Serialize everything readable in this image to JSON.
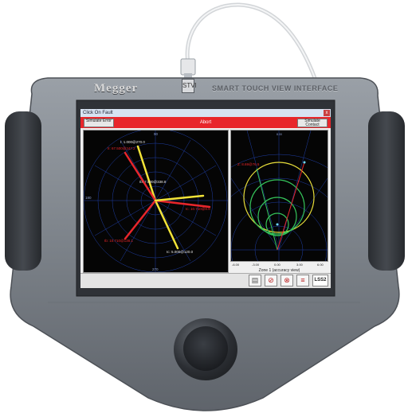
{
  "device": {
    "brand": "Megger",
    "tagline": "SMART TOUCH VIEW INTERFACE",
    "dock_icon": "STVI"
  },
  "screen": {
    "window_title": "Click On Fault",
    "close_glyph": "x",
    "left_button": "Simulate Error",
    "center_label": "Abort",
    "right_button": "Simulate Contact",
    "phasor_labels": [
      "I: 1.000@270.0",
      "II: 67.500@247.2",
      "Ib: 7.000@338.8",
      "Ic: 10.710@8.9",
      "Ib: 10.710@138.1",
      "Ic: 5.000@120.0"
    ],
    "phasor_axis_top": "90",
    "phasor_axis_bottom": "270",
    "phasor_axis_left": "180",
    "impedance_label": "Z: 8.69@76.5",
    "impedance_ticks": [
      "-6.00",
      "-3.00",
      "0.00",
      "3.00",
      "6.00"
    ],
    "impedance_axis_top": "8.00",
    "impedance_axis_bottom": "0.00",
    "zone_caption": "Zone 1 (accuracy view)",
    "toolbar_logo": "LSS2"
  },
  "colors": {
    "accent_red": "#e8262b",
    "phasor_yellow": "#f2e338",
    "phasor_red": "#e8262b",
    "zone_green": "#35c45a",
    "zone_yellow": "#e7dd3a"
  }
}
